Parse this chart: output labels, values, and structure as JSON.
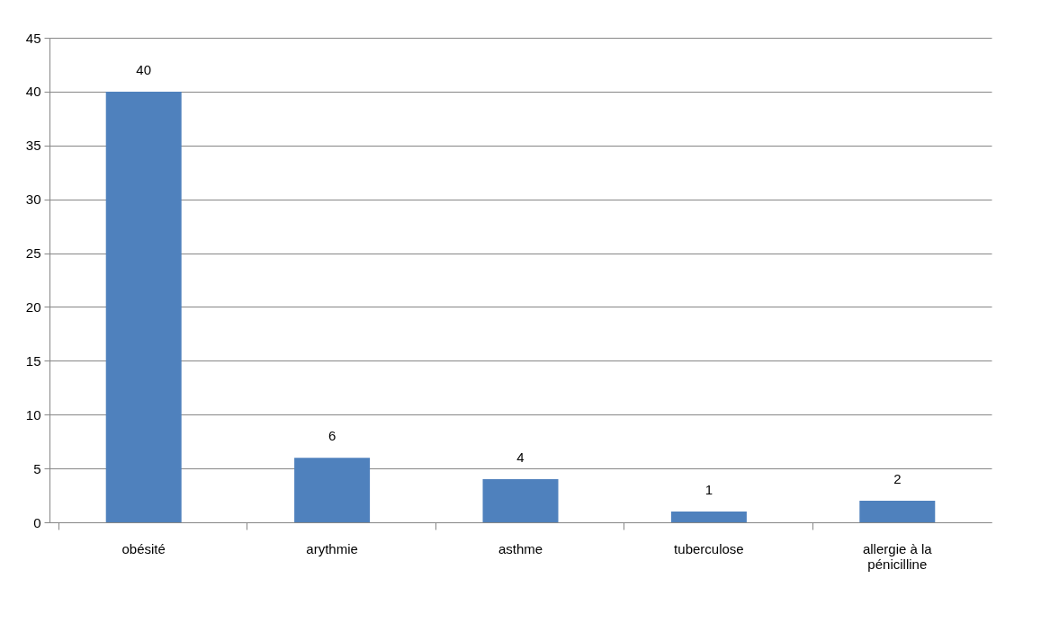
{
  "chart_data": {
    "type": "bar",
    "categories": [
      "obésité",
      "arythmie",
      "asthme",
      "tuberculose",
      "allergie à  la\npénicilline"
    ],
    "values": [
      40,
      6,
      4,
      1,
      2
    ],
    "color": "#4f81bd",
    "ylim": [
      0,
      45
    ],
    "yticks": [
      0,
      5,
      10,
      15,
      20,
      25,
      30,
      35,
      40,
      45
    ],
    "grid": "y",
    "data_labels": true
  }
}
